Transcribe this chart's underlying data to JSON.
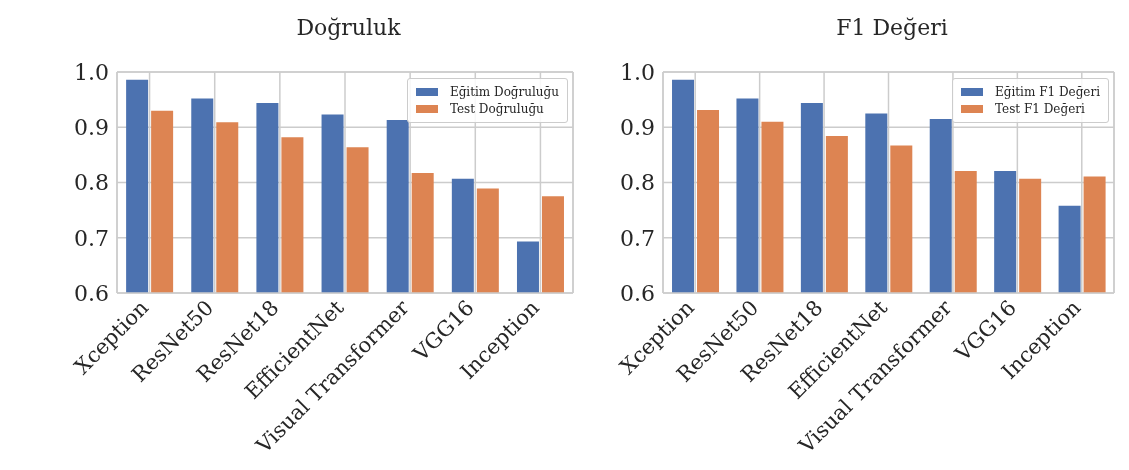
{
  "chart_data": [
    {
      "type": "bar",
      "title": "Doğruluk",
      "categories": [
        "Xception",
        "ResNet50",
        "ResNet18",
        "EfficientNet",
        "Visual Transformer",
        "VGG16",
        "Inception"
      ],
      "series": [
        {
          "name": "Eğitim Doğruluğu",
          "color": "#4c72b0",
          "values": [
            0.986,
            0.952,
            0.944,
            0.923,
            0.913,
            0.807,
            0.693
          ]
        },
        {
          "name": "Test Doğruluğu",
          "color": "#dd8452",
          "values": [
            0.93,
            0.909,
            0.882,
            0.864,
            0.817,
            0.789,
            0.775
          ]
        }
      ],
      "ylim": [
        0.6,
        1.0
      ],
      "yticks": [
        0.6,
        0.7,
        0.8,
        0.9,
        {
          "value": 1.0,
          "label": "1.0"
        }
      ],
      "grid": true,
      "legend": "top right"
    },
    {
      "type": "bar",
      "title": "F1 Değeri",
      "categories": [
        "Xception",
        "ResNet50",
        "ResNet18",
        "EfficientNet",
        "Visual Transformer",
        "VGG16",
        "Inception"
      ],
      "series": [
        {
          "name": "Eğitim F1 Değeri",
          "color": "#4c72b0",
          "values": [
            0.986,
            0.952,
            0.944,
            0.925,
            0.915,
            0.821,
            0.758
          ]
        },
        {
          "name": "Test F1 Değeri",
          "color": "#dd8452",
          "values": [
            0.931,
            0.91,
            0.884,
            0.867,
            0.821,
            0.807,
            0.811
          ]
        }
      ],
      "ylim": [
        0.6,
        1.0
      ],
      "yticks": [
        0.6,
        0.7,
        0.8,
        0.9,
        {
          "value": 1.0,
          "label": "1.0"
        }
      ],
      "grid": true,
      "legend": "top right"
    }
  ]
}
